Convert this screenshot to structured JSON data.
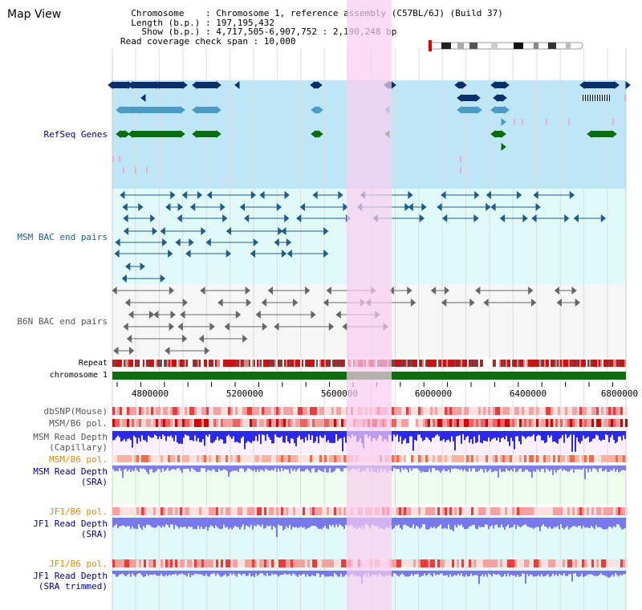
{
  "page_title": "Map View",
  "info": {
    "chromosome_line": "  Chromosome    : Chromosome 1, reference assembly (C57BL/6J) (Build 37)",
    "length_line": "  Length (b.p.) : 197,195,432",
    "show_line": "    Show (b.p.) : 4,717,505-6,907,752 : 2,190,248 bp",
    "coverage_line": "Read coverage check span : 10,000"
  },
  "tracks": {
    "refseq": "RefSeq Genes",
    "msm_bac": "MSM BAC end pairs",
    "b6n_bac": "B6N BAC end pairs",
    "repeat": "Repeat",
    "chromosome": "chromosome 1",
    "dbsnp": "dbSNP(Mouse)",
    "msm_b6_pol_cap": "MSM/B6 pol.",
    "msm_depth_cap_1": "MSM Read Depth",
    "msm_depth_cap_2": "(Capillary)",
    "msm_b6_pol_sra": "MSM/B6 pol.",
    "msm_depth_sra_1": "MSM Read Depth",
    "msm_depth_sra_2": "(SRA)",
    "jf1_b6_pol_1": "JF1/B6 pol.",
    "jf1_depth_sra_1": "JF1 Read Depth",
    "jf1_depth_sra_2": "(SRA)",
    "jf1_b6_pol_2": "JF1/B6 pol.",
    "jf1_depth_trim_1": "JF1 Read Depth",
    "jf1_depth_trim_2": "(SRA trimmed)"
  },
  "axis": {
    "ticks": [
      "4800000",
      "5200000",
      "5600000",
      "6000000",
      "6400000",
      "6800000"
    ]
  },
  "colors": {
    "refseq_bg": "#bfe6f6",
    "bac_bg": "#e0fafa",
    "highlight": "#f9cdef",
    "chromosome": "#0a6e0a",
    "navy": "#0b2f6b",
    "teal": "#4a9cc4",
    "green": "#0a6e0a",
    "pink": "#f7a8c8",
    "msm_color": "#1f5c8c",
    "b6n_color": "#666666",
    "label_navy": "#00008b",
    "label_orange": "#e08a00",
    "label_gray": "#555555"
  }
}
